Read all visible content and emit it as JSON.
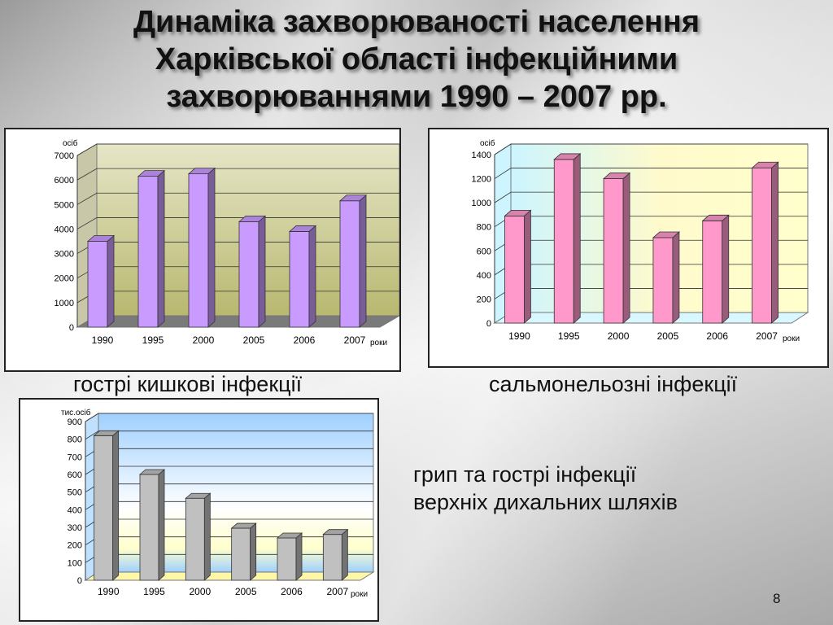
{
  "title": {
    "line1": "Динаміка захворюваності населення",
    "line2": "Харківської області інфекційними",
    "line3": "захворюваннями 1990 – 2007 рр."
  },
  "captions": {
    "chart1": "гострі кишкові інфекції",
    "chart2": "сальмонельозні інфекції",
    "chart3_line1": "грип та гострі інфекції",
    "chart3_line2": "верхніх дихальних шляхів"
  },
  "page_number": "8",
  "colors": {
    "chart1_bar": "#c99bff",
    "chart2_bar": "#ff99cc",
    "chart3_bar": "#c0c0c0"
  },
  "chart_data": [
    {
      "type": "bar",
      "categories": [
        "1990",
        "1995",
        "2000",
        "2005",
        "2006",
        "2007"
      ],
      "values": [
        3500,
        6150,
        6250,
        4300,
        3900,
        5150
      ],
      "ylabel": "осіб",
      "xlabel": "роки",
      "ylim": [
        0,
        7000
      ],
      "yticks": [
        0,
        1000,
        2000,
        3000,
        4000,
        5000,
        6000,
        7000
      ],
      "grid": true
    },
    {
      "type": "bar",
      "categories": [
        "1990",
        "1995",
        "2000",
        "2005",
        "2006",
        "2007"
      ],
      "values": [
        890,
        1360,
        1200,
        710,
        850,
        1290
      ],
      "ylabel": "осіб",
      "xlabel": "роки",
      "ylim": [
        0,
        1400
      ],
      "yticks": [
        0,
        200,
        400,
        600,
        800,
        1000,
        1200,
        1400
      ],
      "grid": true
    },
    {
      "type": "bar",
      "categories": [
        "1990",
        "1995",
        "2000",
        "2005",
        "2006",
        "2007"
      ],
      "values": [
        820,
        600,
        465,
        295,
        240,
        260
      ],
      "ylabel": "тис.осіб",
      "xlabel": "роки",
      "ylim": [
        0,
        900
      ],
      "yticks": [
        0,
        100,
        200,
        300,
        400,
        500,
        600,
        700,
        800,
        900
      ],
      "grid": true
    }
  ]
}
